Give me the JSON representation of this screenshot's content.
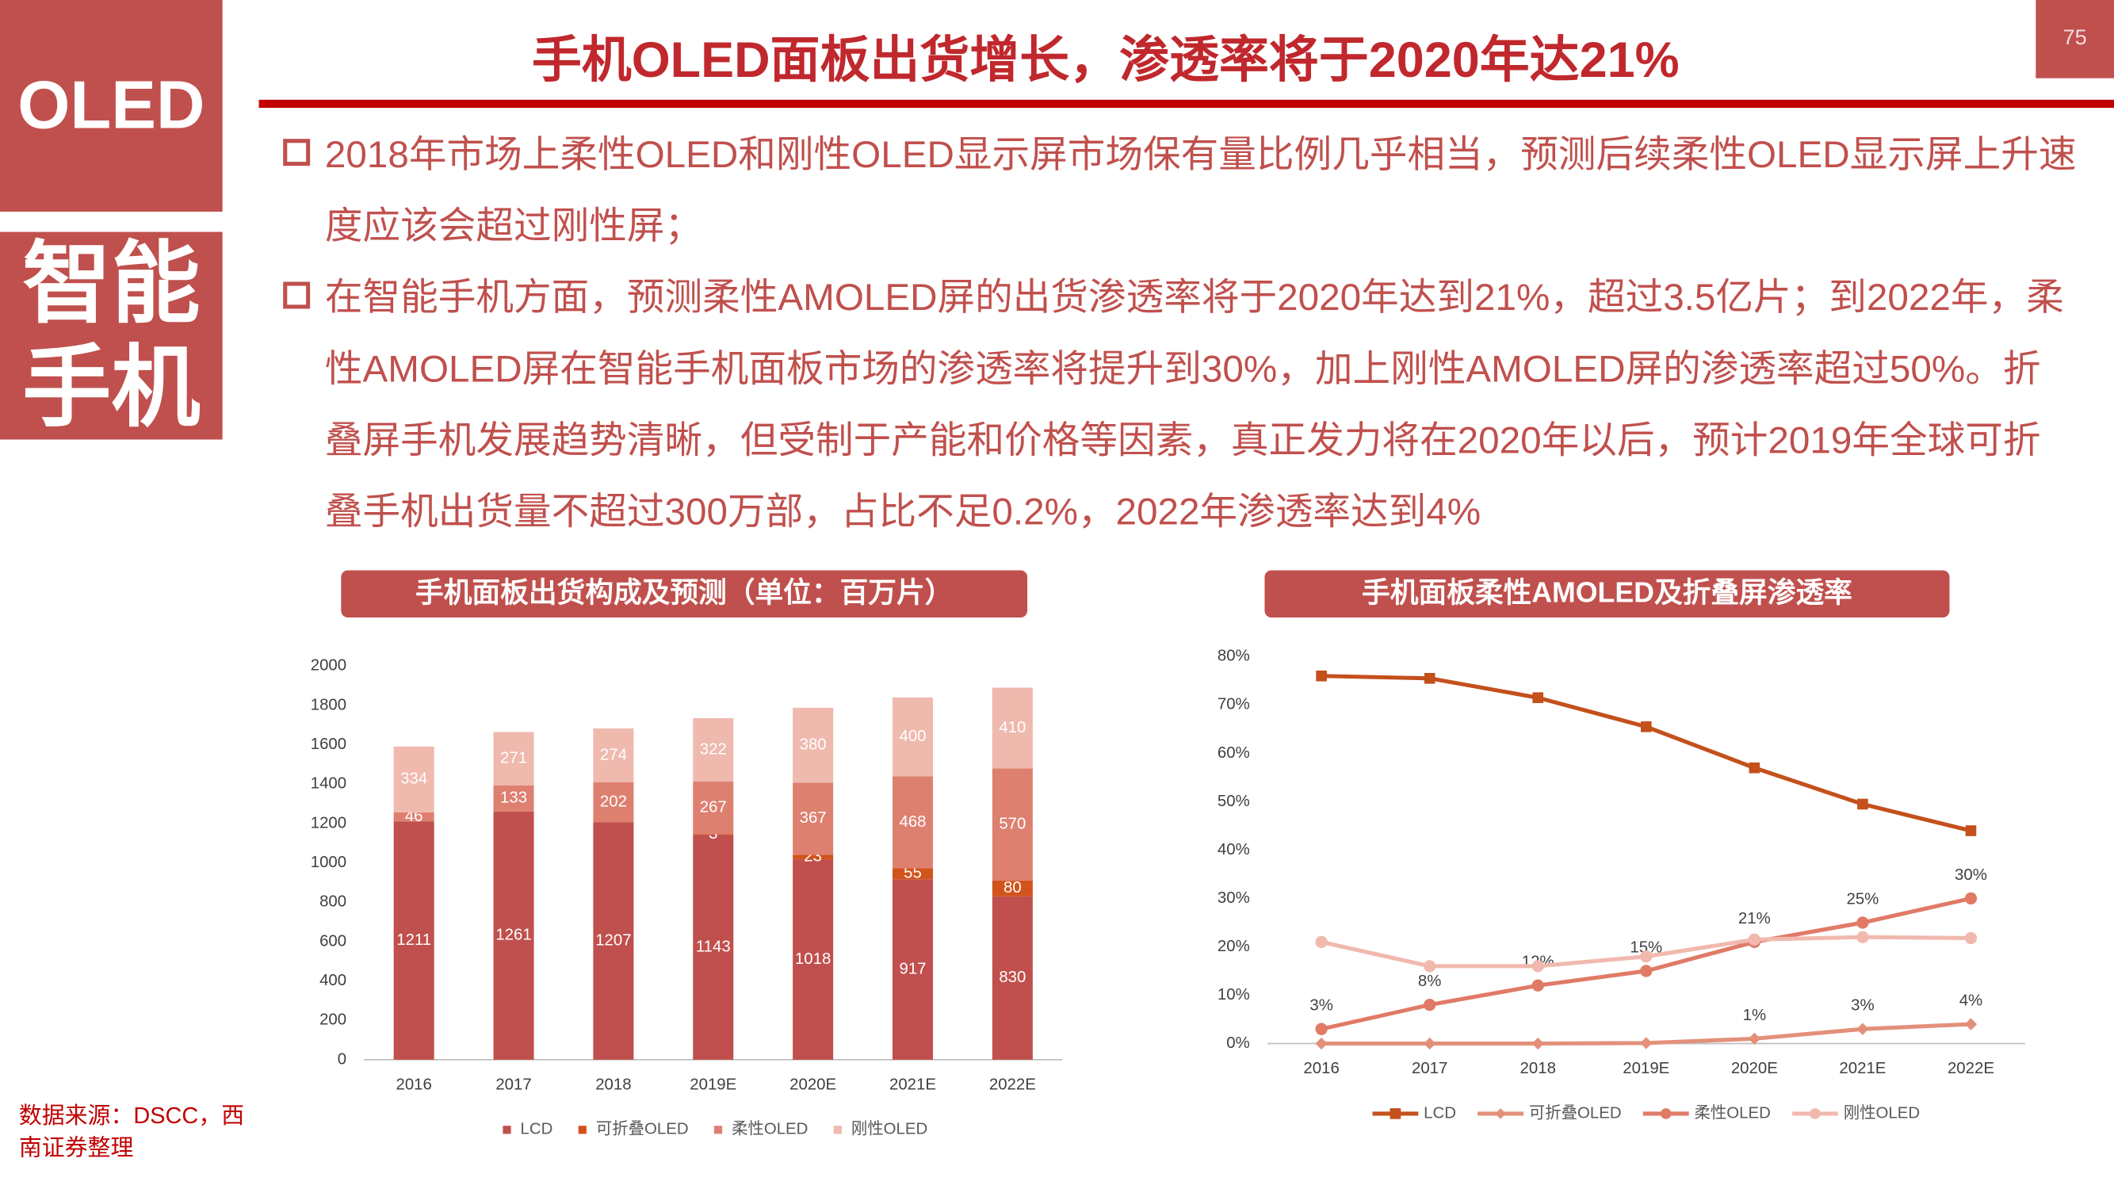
{
  "sidebar": {
    "tag": "OLED",
    "lines": [
      "智能",
      "手机"
    ]
  },
  "page_number": "75",
  "title": "手机OLED面板出货增长，渗透率将于2020年达21%",
  "bullets": [
    "2018年市场上柔性OLED和刚性OLED显示屏市场保有量比例几乎相当，预测后续柔性OLED显示屏上升速度应该会超过刚性屏；",
    "在智能手机方面，预测柔性AMOLED屏的出货渗透率将于2020年达到21%，超过3.5亿片；到2022年，柔性AMOLED屏在智能手机面板市场的渗透率将提升到30%，加上刚性AMOLED屏的渗透率超过50%。折叠屏手机发展趋势清晰，但受制于产能和价格等因素，真正发力将在2020年以后，预计2019年全球可折叠手机出货量不超过300万部，占比不足0.2%，2022年渗透率达到4%"
  ],
  "source": "数据来源：DSCC，西南证券整理",
  "chart_data": [
    {
      "type": "bar",
      "stacked": true,
      "title": "手机面板出货构成及预测（单位：百万片）",
      "categories": [
        "2016",
        "2017",
        "2018",
        "2019E",
        "2020E",
        "2021E",
        "2022E"
      ],
      "series": [
        {
          "name": "LCD",
          "color": "#c0504d",
          "values": [
            1211,
            1261,
            1207,
            1143,
            1018,
            917,
            830
          ]
        },
        {
          "name": "可折叠OLED",
          "color": "#d2531b",
          "values": [
            null,
            null,
            null,
            3,
            23,
            55,
            80
          ]
        },
        {
          "name": "柔性OLED",
          "color": "#de8070",
          "values": [
            46,
            133,
            202,
            267,
            367,
            468,
            570
          ]
        },
        {
          "name": "刚性OLED",
          "color": "#efb9ae",
          "values": [
            334,
            271,
            274,
            322,
            380,
            400,
            410
          ]
        }
      ],
      "ylim": [
        0,
        2000
      ],
      "yticks": [
        0,
        200,
        400,
        600,
        800,
        1000,
        1200,
        1400,
        1600,
        1800,
        2000
      ],
      "grid": false,
      "legend": "bottom"
    },
    {
      "type": "line",
      "title": "手机面板柔性AMOLED及折叠屏渗透率",
      "categories": [
        "2016",
        "2017",
        "2018",
        "2019E",
        "2020E",
        "2021E",
        "2022E"
      ],
      "series": [
        {
          "name": "LCD",
          "color": "#c4501c",
          "marker": "square",
          "values": [
            76,
            75.5,
            71.5,
            65.5,
            57,
            49.5,
            44
          ]
        },
        {
          "name": "可折叠OLED",
          "color": "#e3907a",
          "marker": "diamond",
          "values": [
            0,
            0,
            0,
            0.1,
            1,
            3,
            4
          ],
          "value_labels": [
            null,
            null,
            null,
            null,
            "1%",
            "3%",
            "4%"
          ]
        },
        {
          "name": "柔性OLED",
          "color": "#e07a66",
          "marker": "circle",
          "values": [
            3,
            8,
            12,
            15,
            21,
            25,
            30
          ],
          "value_labels": [
            "3%",
            "8%",
            "12%",
            "15%",
            "21%",
            "25%",
            "30%"
          ]
        },
        {
          "name": "刚性OLED",
          "color": "#f1b9ae",
          "marker": "circle",
          "values": [
            21,
            16,
            16,
            18,
            21.5,
            22,
            21.8
          ]
        }
      ],
      "ylim": [
        0,
        80
      ],
      "yticks": [
        {
          "value": 0,
          "label": "0%"
        },
        {
          "value": 10,
          "label": "10%"
        },
        {
          "value": 20,
          "label": "20%"
        },
        {
          "value": 30,
          "label": "30%"
        },
        {
          "value": 40,
          "label": "40%"
        },
        {
          "value": 50,
          "label": "50%"
        },
        {
          "value": 60,
          "label": "60%"
        },
        {
          "value": 70,
          "label": "70%"
        },
        {
          "value": 80,
          "label": "80%"
        }
      ],
      "grid": false,
      "legend": "bottom"
    }
  ]
}
